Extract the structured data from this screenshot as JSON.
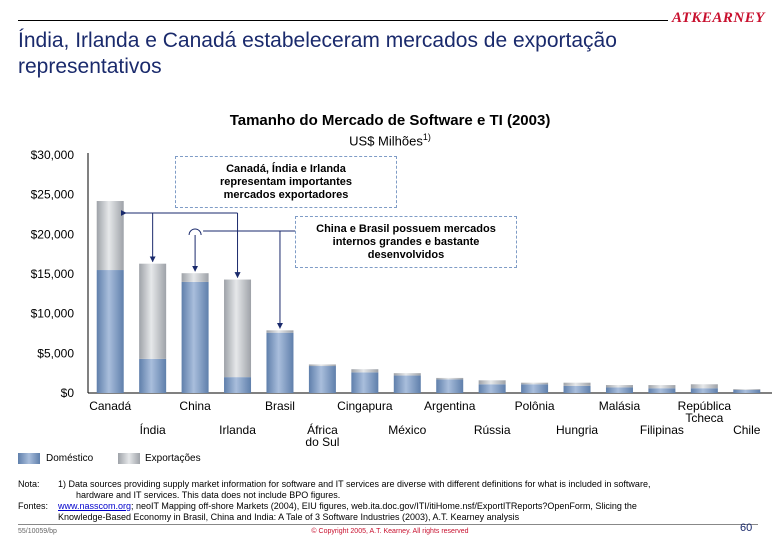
{
  "header": {
    "logo": "ATKEARNEY",
    "title_line1": "Índia, Irlanda e Canadá estabeleceram mercados de exportação",
    "title_line2": "representativos"
  },
  "chart_data": {
    "type": "bar",
    "title": "Tamanho do Mercado de Software e TI (2003)",
    "ylabel": "US$ Milhões",
    "ylabel_footnote": "1)",
    "ylim": [
      0,
      30000
    ],
    "yticks": [
      "$0",
      "$5,000",
      "$10,000",
      "$15,000",
      "$20,000",
      "$25,000",
      "$30,000"
    ],
    "ytick_values": [
      0,
      5000,
      10000,
      15000,
      20000,
      25000,
      30000
    ],
    "categories": [
      "Canadá",
      "Índia",
      "China",
      "Irlanda",
      "Brasil",
      "África do Sul",
      "Cingapura",
      "México",
      "Argentina",
      "Rússia",
      "Polônia",
      "Hungria",
      "Malásia",
      "Filipinas",
      "República Tcheca",
      "Chile"
    ],
    "category_labels": [
      [
        "Canadá"
      ],
      [
        "Índia"
      ],
      [
        "China"
      ],
      [
        "Irlanda"
      ],
      [
        "Brasil"
      ],
      [
        "África",
        "do Sul"
      ],
      [
        "Cingapura"
      ],
      [
        "México"
      ],
      [
        "Argentina"
      ],
      [
        "Rússia"
      ],
      [
        "Polônia"
      ],
      [
        "Hungria"
      ],
      [
        "Malásia"
      ],
      [
        "Filipinas"
      ],
      [
        "República",
        "Tcheca"
      ],
      [
        "Chile"
      ]
    ],
    "stacked": true,
    "series": [
      {
        "name": "Doméstico",
        "color": "#7f9cc6",
        "values": [
          15500,
          4300,
          14000,
          2000,
          7600,
          3400,
          2600,
          2200,
          1700,
          1100,
          1100,
          900,
          700,
          600,
          600,
          400
        ]
      },
      {
        "name": "Exportações",
        "color": "#c4c7cc",
        "values": [
          8700,
          12000,
          1100,
          12300,
          300,
          200,
          400,
          300,
          200,
          500,
          200,
          400,
          300,
          400,
          500,
          100
        ]
      }
    ],
    "legend": "bottom-left",
    "grid": false
  },
  "callouts": [
    {
      "lines": [
        "Canadá, Índia e Irlanda",
        "representam importantes",
        "mercados exportadores"
      ]
    },
    {
      "lines": [
        "China e Brasil possuem mercados",
        "internos grandes e bastante",
        "desenvolvidos"
      ]
    }
  ],
  "notes": {
    "nota_label": "Nota:",
    "nota_line1": "1) Data sources providing supply market information for software and IT services are diverse with different definitions for what is included in software,",
    "nota_line2": "hardware and IT services. This data does not include BPO figures.",
    "fontes_label": "Fontes:",
    "fontes_link": "www.nasscom.org",
    "fontes_line1_rest": "; neoIT Mapping off-shore Markets (2004), EIU figures, web.ita.doc.gov/ITI/itiHome.nsf/ExportITReports?OpenForm, Slicing the",
    "fontes_line2": "Knowledge-Based Economy in Brasil, China and India: A Tale of 3 Software Industries (2003), A.T. Kearney analysis"
  },
  "footer": {
    "left": "55/10059/bp",
    "center": "© Copyright 2005, A.T. Kearney. All rights reserved",
    "page": "60"
  }
}
